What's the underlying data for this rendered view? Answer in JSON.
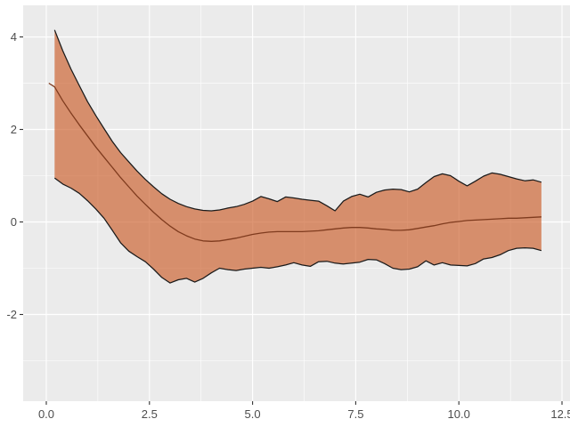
{
  "figure": {
    "outer_background": "#FFFFFF"
  },
  "chart_data": {
    "type": "area",
    "title": "",
    "xlabel": "",
    "ylabel": "",
    "grid": true,
    "legend_position": "none",
    "panel_style": "ggplot-grey",
    "x": [
      0.06,
      0.2,
      0.4,
      0.6,
      0.8,
      1.0,
      1.2,
      1.4,
      1.6,
      1.8,
      2.0,
      2.2,
      2.4,
      2.6,
      2.8,
      3.0,
      3.2,
      3.4,
      3.6,
      3.8,
      4.0,
      4.2,
      4.4,
      4.6,
      4.8,
      5.0,
      5.2,
      5.4,
      5.6,
      5.8,
      6.0,
      6.2,
      6.4,
      6.6,
      6.8,
      7.0,
      7.2,
      7.4,
      7.6,
      7.8,
      8.0,
      8.2,
      8.4,
      8.6,
      8.8,
      9.0,
      9.2,
      9.4,
      9.6,
      9.8,
      10.0,
      10.2,
      10.4,
      10.6,
      10.8,
      11.0,
      11.2,
      11.4,
      11.6,
      11.8,
      12.0
    ],
    "series": [
      {
        "name": "upper_band",
        "values": [
          null,
          4.15,
          3.7,
          3.3,
          2.95,
          2.6,
          2.3,
          2.02,
          1.74,
          1.5,
          1.3,
          1.1,
          0.92,
          0.76,
          0.61,
          0.49,
          0.4,
          0.33,
          0.28,
          0.25,
          0.24,
          0.26,
          0.3,
          0.33,
          0.38,
          0.45,
          0.55,
          0.5,
          0.44,
          0.54,
          0.52,
          0.49,
          0.47,
          0.45,
          0.35,
          0.24,
          0.45,
          0.55,
          0.6,
          0.54,
          0.64,
          0.69,
          0.71,
          0.7,
          0.65,
          0.71,
          0.85,
          0.98,
          1.04,
          1.0,
          0.88,
          0.78,
          0.88,
          0.99,
          1.06,
          1.03,
          0.98,
          0.93,
          0.89,
          0.91,
          0.86
        ]
      },
      {
        "name": "median",
        "values": [
          3.0,
          2.92,
          2.62,
          2.35,
          2.1,
          1.86,
          1.62,
          1.4,
          1.18,
          0.96,
          0.76,
          0.56,
          0.38,
          0.21,
          0.05,
          -0.09,
          -0.21,
          -0.3,
          -0.37,
          -0.41,
          -0.42,
          -0.41,
          -0.38,
          -0.35,
          -0.31,
          -0.27,
          -0.24,
          -0.22,
          -0.21,
          -0.21,
          -0.21,
          -0.21,
          -0.2,
          -0.19,
          -0.17,
          -0.15,
          -0.13,
          -0.12,
          -0.12,
          -0.13,
          -0.15,
          -0.16,
          -0.18,
          -0.18,
          -0.17,
          -0.14,
          -0.11,
          -0.08,
          -0.04,
          -0.01,
          0.01,
          0.03,
          0.04,
          0.05,
          0.06,
          0.07,
          0.08,
          0.08,
          0.09,
          0.1,
          0.11
        ]
      },
      {
        "name": "lower_band",
        "values": [
          null,
          0.95,
          0.82,
          0.73,
          0.62,
          0.46,
          0.28,
          0.08,
          -0.18,
          -0.45,
          -0.63,
          -0.75,
          -0.86,
          -1.02,
          -1.2,
          -1.32,
          -1.25,
          -1.22,
          -1.3,
          -1.22,
          -1.1,
          -1.0,
          -1.03,
          -1.05,
          -1.02,
          -1.0,
          -0.98,
          -1.0,
          -0.97,
          -0.93,
          -0.88,
          -0.93,
          -0.96,
          -0.86,
          -0.85,
          -0.89,
          -0.91,
          -0.89,
          -0.87,
          -0.81,
          -0.82,
          -0.9,
          -1.0,
          -1.03,
          -1.02,
          -0.97,
          -0.84,
          -0.93,
          -0.88,
          -0.93,
          -0.94,
          -0.95,
          -0.9,
          -0.8,
          -0.77,
          -0.71,
          -0.62,
          -0.57,
          -0.56,
          -0.57,
          -0.62
        ]
      }
    ],
    "x_axis": {
      "range": [
        -0.561,
        12.694
      ],
      "major_ticks": [
        0,
        2.5,
        5,
        7.5,
        10,
        12.5
      ],
      "tick_labels": [
        "0.0",
        "2.5",
        "5.0",
        "7.5",
        "10.0",
        "12.5"
      ],
      "minor_ticks": [
        1.25,
        3.75,
        6.25,
        8.75,
        11.25
      ]
    },
    "y_axis": {
      "range": [
        -3.875,
        4.683
      ],
      "major_ticks": [
        4,
        2,
        0,
        -2
      ],
      "tick_labels": [
        "4",
        "2",
        "0",
        "-2"
      ],
      "minor_ticks": [
        3,
        1,
        -1,
        -3
      ]
    },
    "colors": {
      "band_fill": "rgba(203,94,43,0.66)",
      "band_outline": "#1A1A1A",
      "median_line": "#7F3B1E",
      "panel_background": "#EBEBEB",
      "gridline": "#FFFFFF",
      "tick_mark": "#333333",
      "axis_text": "#4D4D4D"
    }
  }
}
